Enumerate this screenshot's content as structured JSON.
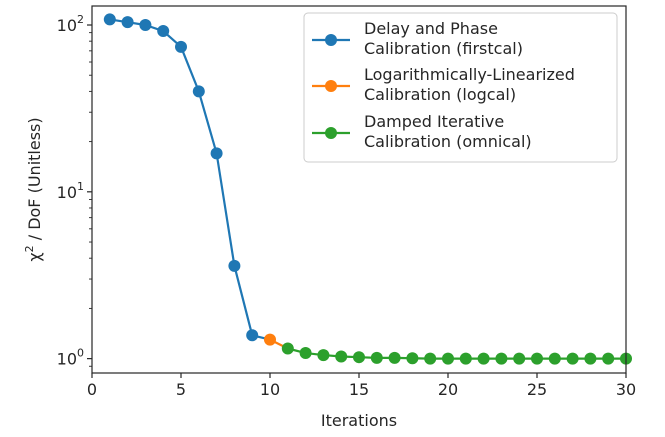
{
  "chart_data": {
    "type": "line",
    "xlabel": "Iterations",
    "ylabel_parts": [
      "χ",
      "2",
      " / DoF (Unitless)"
    ],
    "x_ticks": [
      0,
      5,
      10,
      15,
      20,
      25,
      30
    ],
    "x_tick_labels": [
      "0",
      "5",
      "10",
      "15",
      "20",
      "25",
      "30"
    ],
    "y_ticks": [
      1,
      10,
      100
    ],
    "y_tick_labels": [
      {
        "base": "10",
        "exp": "0"
      },
      {
        "base": "10",
        "exp": "1"
      },
      {
        "base": "10",
        "exp": "2"
      }
    ],
    "xlim": [
      0,
      30
    ],
    "ylim": [
      0.82,
      130
    ],
    "y_scale": "log",
    "legend_position": "top-right",
    "series": [
      {
        "legend_lines": [
          "Delay and Phase",
          "Calibration (firstcal)"
        ],
        "color": "#1f77b4",
        "x": [
          1,
          2,
          3,
          4,
          5,
          6,
          7,
          8,
          9
        ],
        "y": [
          108,
          104,
          100,
          92,
          74,
          40,
          17,
          3.6,
          1.38
        ]
      },
      {
        "legend_lines": [
          "Logarithmically-Linearized",
          "Calibration (logcal)"
        ],
        "color": "#ff7f0e",
        "x": [
          10
        ],
        "y": [
          1.3
        ]
      },
      {
        "legend_lines": [
          "Damped Iterative",
          "Calibration (omnical)"
        ],
        "color": "#2ca02c",
        "x": [
          11,
          12,
          13,
          14,
          15,
          16,
          17,
          18,
          19,
          20,
          21,
          22,
          23,
          24,
          25,
          26,
          27,
          28,
          29,
          30
        ],
        "y": [
          1.15,
          1.08,
          1.05,
          1.03,
          1.02,
          1.01,
          1.01,
          1.005,
          1.0,
          1.0,
          1.0,
          1.0,
          1.0,
          1.0,
          1.0,
          1.0,
          1.0,
          1.0,
          1.0,
          1.0
        ]
      }
    ],
    "connectors": [
      {
        "color": "#1f77b4",
        "from": [
          9,
          1.38
        ],
        "to": [
          10,
          1.3
        ]
      },
      {
        "color": "#ff7f0e",
        "from": [
          10,
          1.3
        ],
        "to": [
          11,
          1.15
        ]
      }
    ]
  }
}
